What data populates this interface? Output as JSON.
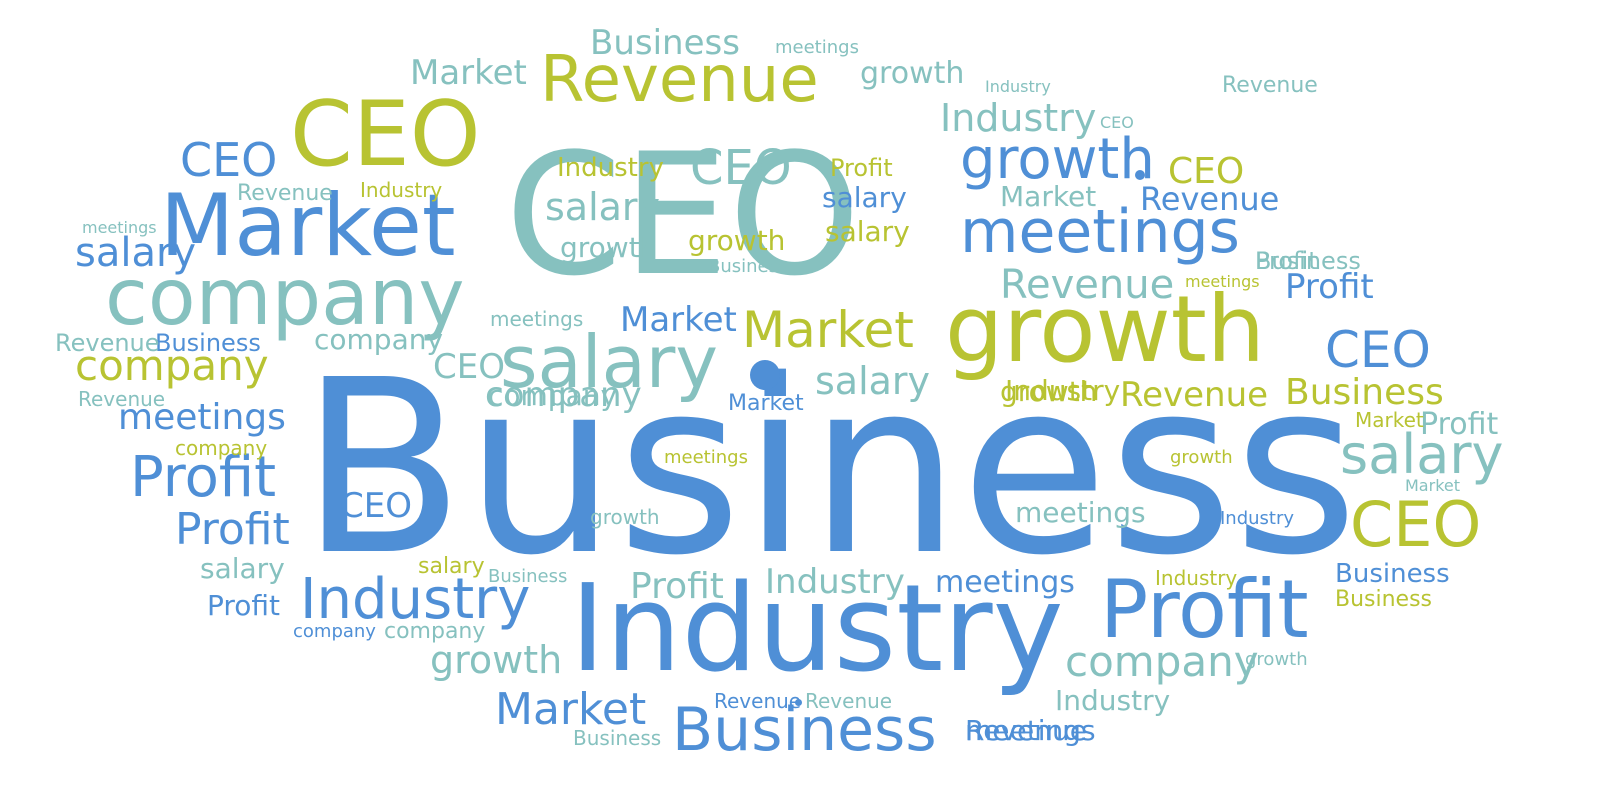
{
  "word_cloud": {
    "colors": {
      "blue": "#4f8fd6",
      "light_blue": "#6fa0dc",
      "teal": "#86c1bf",
      "light_teal": "#9ccac6",
      "green": "#b8c332"
    },
    "words": [
      {
        "text": "Business",
        "color": "blue"
      },
      {
        "text": "CEO",
        "color": "teal"
      },
      {
        "text": "Industry",
        "color": "blue"
      },
      {
        "text": "growth",
        "color": "green"
      },
      {
        "text": "company",
        "color": "teal"
      },
      {
        "text": "Market",
        "color": "blue"
      },
      {
        "text": "Revenue",
        "color": "green"
      },
      {
        "text": "CEO",
        "color": "green"
      },
      {
        "text": "salary",
        "color": "teal"
      },
      {
        "text": "meetings",
        "color": "blue"
      },
      {
        "text": "Profit",
        "color": "blue"
      },
      {
        "text": "Business",
        "color": "blue"
      },
      {
        "text": "growth",
        "color": "blue"
      },
      {
        "text": "Market",
        "color": "green"
      },
      {
        "text": "CEO",
        "color": "green"
      },
      {
        "text": "salary",
        "color": "teal"
      },
      {
        "text": "Profit",
        "color": "blue"
      },
      {
        "text": "Profit",
        "color": "blue"
      },
      {
        "text": "Industry",
        "color": "blue"
      },
      {
        "text": "company",
        "color": "green"
      },
      {
        "text": "company",
        "color": "teal"
      },
      {
        "text": "Business",
        "color": "teal"
      },
      {
        "text": "Market",
        "color": "teal"
      },
      {
        "text": "CEO",
        "color": "blue"
      },
      {
        "text": "CEO",
        "color": "teal"
      },
      {
        "text": "Industry",
        "color": "teal"
      },
      {
        "text": "salary",
        "color": "teal"
      },
      {
        "text": "Revenue",
        "color": "teal"
      },
      {
        "text": "meetings",
        "color": "blue"
      },
      {
        "text": "CEO",
        "color": "blue"
      },
      {
        "text": "Business",
        "color": "green"
      },
      {
        "text": "growth",
        "color": "teal"
      },
      {
        "text": "Profit",
        "color": "blue"
      },
      {
        "text": "Market",
        "color": "blue"
      },
      {
        "text": "CEO",
        "color": "teal"
      },
      {
        "text": "salary",
        "color": "teal"
      },
      {
        "text": "growth",
        "color": "teal"
      },
      {
        "text": "Industry",
        "color": "teal"
      },
      {
        "text": "meetings",
        "color": "blue"
      },
      {
        "text": "Market",
        "color": "blue"
      },
      {
        "text": "company",
        "color": "teal"
      },
      {
        "text": "Revenue",
        "color": "blue"
      },
      {
        "text": "Industry",
        "color": "green"
      },
      {
        "text": "salary",
        "color": "blue"
      },
      {
        "text": "salary",
        "color": "green"
      },
      {
        "text": "growth",
        "color": "green"
      },
      {
        "text": "Revenue",
        "color": "green"
      },
      {
        "text": "CEO",
        "color": "blue"
      },
      {
        "text": "CEO",
        "color": "green"
      },
      {
        "text": "company",
        "color": "teal"
      },
      {
        "text": "Market",
        "color": "teal"
      },
      {
        "text": "Industry",
        "color": "green"
      },
      {
        "text": "company",
        "color": "teal"
      },
      {
        "text": "Profit",
        "color": "teal"
      },
      {
        "text": "Profit",
        "color": "teal"
      },
      {
        "text": "growth",
        "color": "teal"
      },
      {
        "text": "salary",
        "color": "teal"
      },
      {
        "text": "Profit",
        "color": "blue"
      },
      {
        "text": "Business",
        "color": "blue"
      },
      {
        "text": "Business",
        "color": "blue"
      },
      {
        "text": "Business",
        "color": "teal"
      },
      {
        "text": "Revenue",
        "color": "teal"
      },
      {
        "text": "Revenue",
        "color": "teal"
      },
      {
        "text": "Revenue",
        "color": "teal"
      },
      {
        "text": "Revenue",
        "color": "teal"
      },
      {
        "text": "Revenue",
        "color": "blue"
      },
      {
        "text": "Revenue",
        "color": "teal"
      },
      {
        "text": "meetings",
        "color": "blue"
      },
      {
        "text": "meetings",
        "color": "teal"
      },
      {
        "text": "meetings",
        "color": "teal"
      },
      {
        "text": "meetings",
        "color": "teal"
      },
      {
        "text": "meetings",
        "color": "teal"
      },
      {
        "text": "meetings",
        "color": "green"
      },
      {
        "text": "meetings",
        "color": "green"
      },
      {
        "text": "Industry",
        "color": "teal"
      },
      {
        "text": "Industry",
        "color": "green"
      },
      {
        "text": "Industry",
        "color": "teal"
      },
      {
        "text": "Industry",
        "color": "blue"
      },
      {
        "text": "Industry",
        "color": "green"
      },
      {
        "text": "growth",
        "color": "green"
      },
      {
        "text": "growth",
        "color": "green"
      },
      {
        "text": "growth",
        "color": "teal"
      },
      {
        "text": "growth",
        "color": "teal"
      },
      {
        "text": "Business",
        "color": "green"
      },
      {
        "text": "Business",
        "color": "teal"
      },
      {
        "text": "Business",
        "color": "teal"
      },
      {
        "text": "Business",
        "color": "teal"
      },
      {
        "text": "Profit",
        "color": "teal"
      },
      {
        "text": "Profit",
        "color": "green"
      },
      {
        "text": "salary",
        "color": "green"
      },
      {
        "text": "company",
        "color": "green"
      },
      {
        "text": "company",
        "color": "teal"
      },
      {
        "text": "company",
        "color": "blue"
      },
      {
        "text": "Market",
        "color": "teal"
      },
      {
        "text": "Market",
        "color": "blue"
      },
      {
        "text": "Market",
        "color": "green"
      },
      {
        "text": "Revenue",
        "color": "blue"
      },
      {
        "text": "CEO",
        "color": "teal"
      },
      {
        "text": "salary",
        "color": "blue"
      }
    ]
  }
}
